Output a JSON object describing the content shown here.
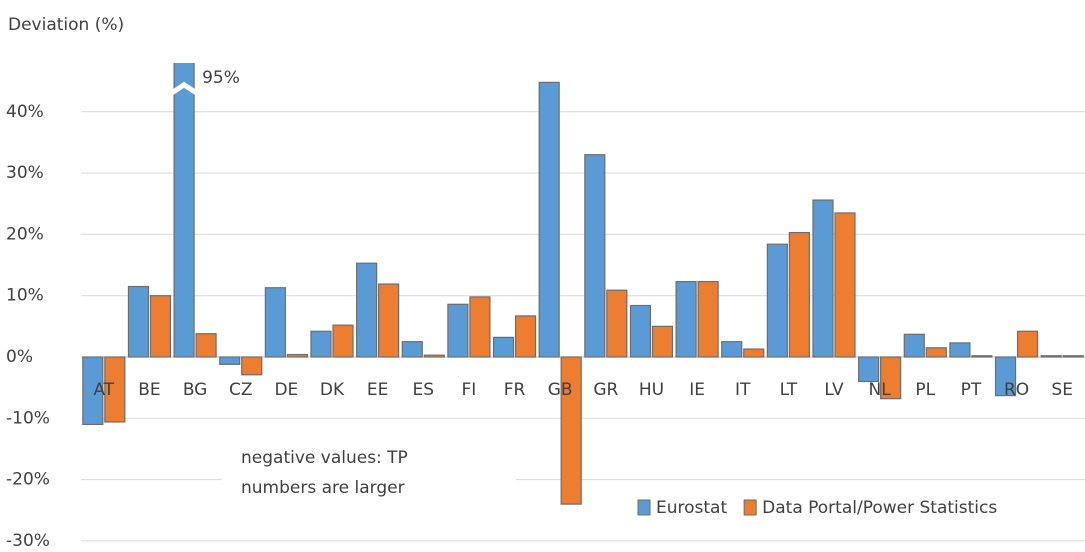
{
  "chart_data": {
    "type": "bar",
    "y_label": "Deviation (%)",
    "categories": [
      "AT",
      "BE",
      "BG",
      "CZ",
      "DE",
      "DK",
      "EE",
      "ES",
      "FI",
      "FR",
      "GB",
      "GR",
      "HU",
      "IE",
      "IT",
      "LT",
      "LV",
      "NL",
      "PL",
      "PT",
      "RO",
      "SE"
    ],
    "series": [
      {
        "name": "Eurostat",
        "color": "#5b9bd5",
        "values": [
          -11,
          11.5,
          95,
          -1.2,
          11.3,
          4.2,
          15.3,
          2.5,
          8.6,
          3.2,
          44.8,
          33,
          8.4,
          12.3,
          2.5,
          18.4,
          25.6,
          -4,
          3.7,
          2.3,
          -6.3,
          0.2
        ],
        "value_labels": [
          null,
          null,
          "95%",
          null,
          null,
          null,
          null,
          null,
          null,
          null,
          null,
          null,
          null,
          null,
          null,
          null,
          null,
          null,
          null,
          null,
          null,
          null
        ]
      },
      {
        "name": "Data Portal/Power Statistics",
        "color": "#ed7d31",
        "values": [
          -10.6,
          10,
          3.8,
          -2.9,
          0.4,
          5.2,
          11.9,
          0.3,
          9.8,
          6.7,
          -24,
          10.9,
          5,
          12.3,
          1.3,
          20.3,
          23.5,
          -6.8,
          1.5,
          0.2,
          4.2,
          0.2
        ]
      }
    ],
    "annotation": [
      "negative values: TP",
      "numbers are larger"
    ],
    "ylim": [
      -30,
      48
    ],
    "yticks": [
      {
        "value": -30,
        "label": "-30%"
      },
      {
        "value": -20,
        "label": "-20%"
      },
      {
        "value": -10,
        "label": "-10%"
      },
      {
        "value": 0,
        "label": "0%"
      },
      {
        "value": 10,
        "label": "10%"
      },
      {
        "value": 20,
        "label": "20%"
      },
      {
        "value": 30,
        "label": "30%"
      },
      {
        "value": 40,
        "label": "40%"
      }
    ],
    "grid": true,
    "legend": "bottom-right"
  }
}
